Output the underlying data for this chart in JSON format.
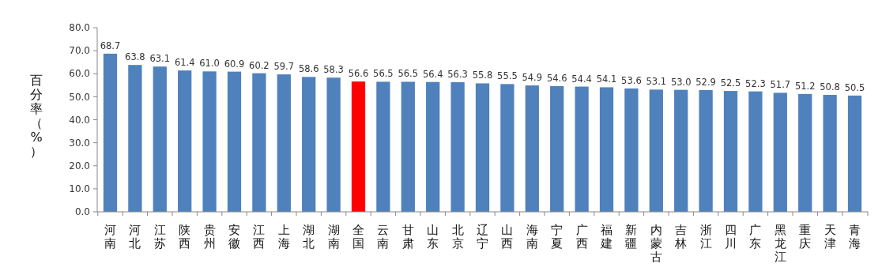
{
  "chart_data": {
    "type": "bar",
    "ylabel": "百分率（%）",
    "categories": [
      "河南",
      "河北",
      "江苏",
      "陕西",
      "贵州",
      "安徽",
      "江西",
      "上海",
      "湖北",
      "湖南",
      "全国",
      "云南",
      "甘肃",
      "山东",
      "北京",
      "辽宁",
      "山西",
      "海南",
      "宁夏",
      "广西",
      "福建",
      "新疆",
      "内蒙古",
      "吉林",
      "浙江",
      "四川",
      "广东",
      "黑龙江",
      "重庆",
      "天津",
      "青海"
    ],
    "values": [
      68.7,
      63.8,
      63.1,
      61.4,
      61.0,
      60.9,
      60.2,
      59.7,
      58.6,
      58.3,
      56.6,
      56.5,
      56.5,
      56.4,
      56.3,
      55.8,
      55.5,
      54.9,
      54.6,
      54.4,
      54.1,
      53.6,
      53.1,
      53.0,
      52.9,
      52.5,
      52.3,
      51.7,
      51.2,
      50.8,
      50.5
    ],
    "value_labels": [
      "68.7",
      "63.8",
      "63.1",
      "61.4",
      "61.0",
      "60.9",
      "60.2",
      "59.7",
      "58.6",
      "58.3",
      "56.6",
      "56.5",
      "56.5",
      "56.4",
      "56.3",
      "55.8",
      "55.5",
      "54.9",
      "54.6",
      "54.4",
      "54.1",
      "53.6",
      "53.1",
      "53.0",
      "52.9",
      "52.5",
      "52.3",
      "51.7",
      "51.2",
      "50.8",
      "50.5"
    ],
    "colors": [
      "#4f81bd",
      "#4f81bd",
      "#4f81bd",
      "#4f81bd",
      "#4f81bd",
      "#4f81bd",
      "#4f81bd",
      "#4f81bd",
      "#4f81bd",
      "#4f81bd",
      "#ff0000",
      "#4f81bd",
      "#4f81bd",
      "#4f81bd",
      "#4f81bd",
      "#4f81bd",
      "#4f81bd",
      "#4f81bd",
      "#4f81bd",
      "#4f81bd",
      "#4f81bd",
      "#4f81bd",
      "#4f81bd",
      "#4f81bd",
      "#4f81bd",
      "#4f81bd",
      "#4f81bd",
      "#4f81bd",
      "#4f81bd",
      "#4f81bd",
      "#4f81bd"
    ],
    "ylim": [
      0,
      80
    ],
    "yticks": [
      {
        "value": 0,
        "label": "0.0"
      },
      {
        "value": 10,
        "label": "10.0"
      },
      {
        "value": 20,
        "label": "20.0"
      },
      {
        "value": 30,
        "label": "30.0"
      },
      {
        "value": 40,
        "label": "40.0"
      },
      {
        "value": 50,
        "label": "50.0"
      },
      {
        "value": 60,
        "label": "60.0"
      },
      {
        "value": 70,
        "label": "70.0"
      },
      {
        "value": 80,
        "label": "80.0"
      }
    ],
    "grid": false
  }
}
